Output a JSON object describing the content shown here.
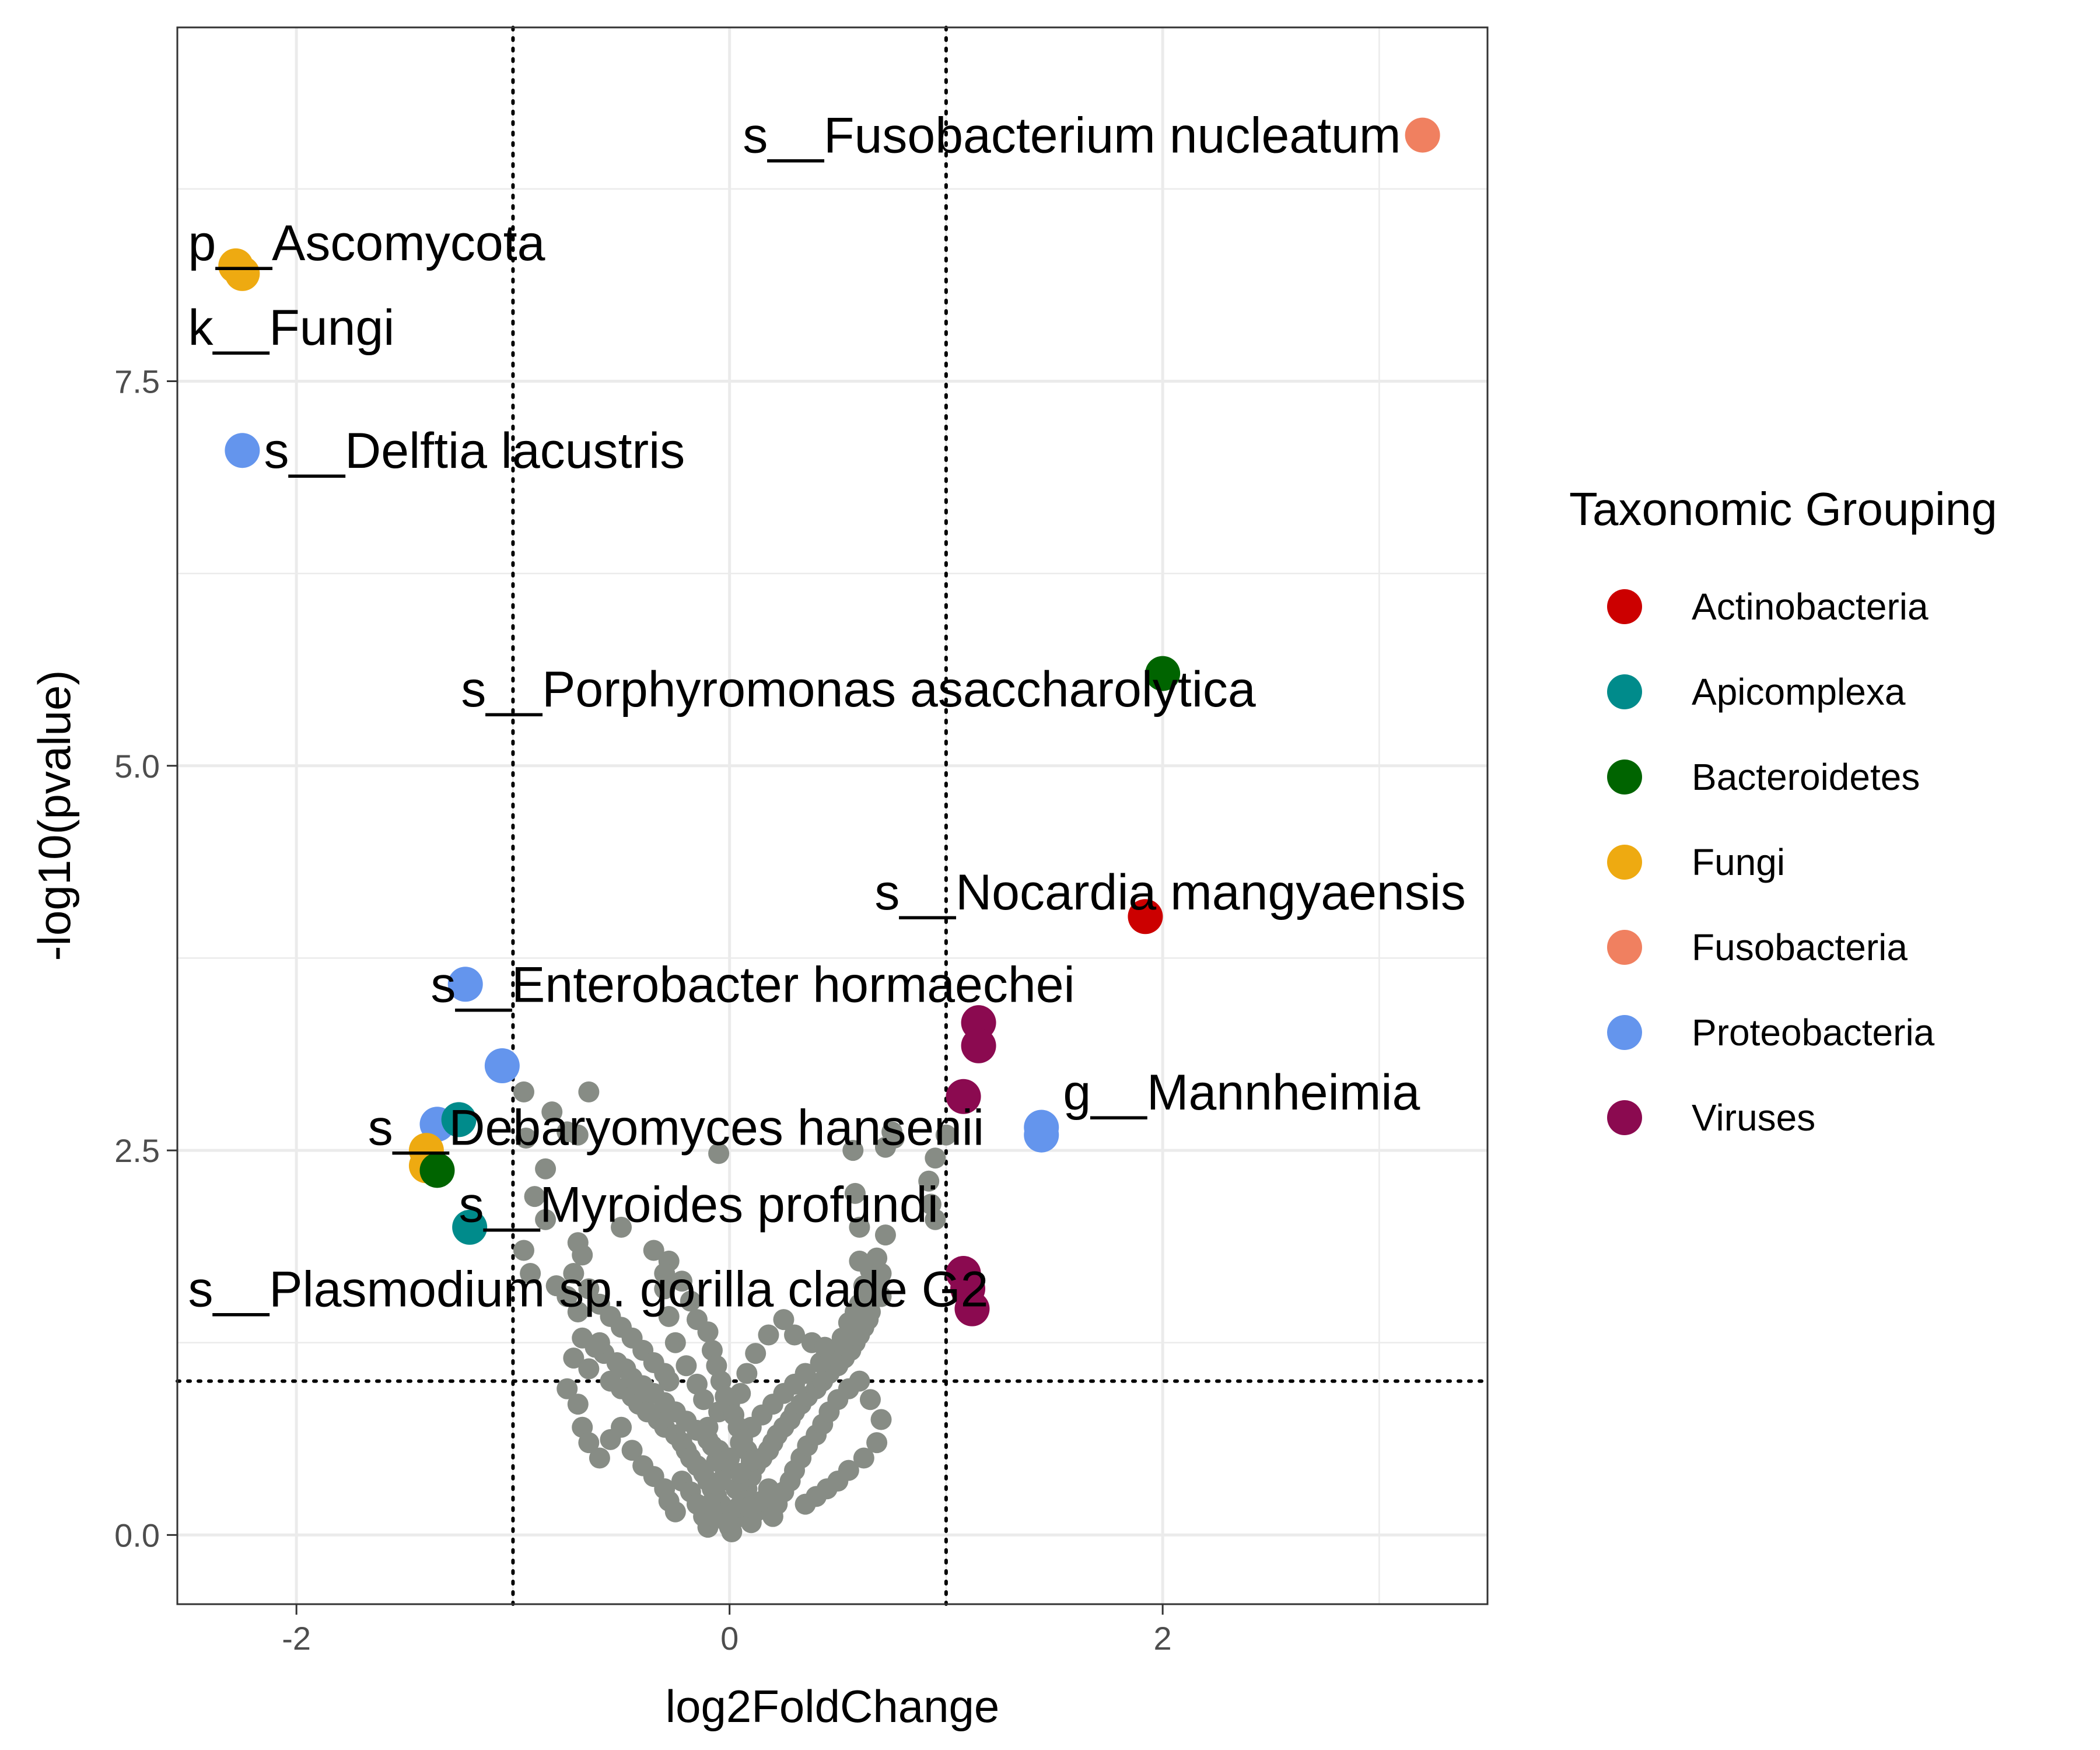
{
  "chart_data": {
    "type": "scatter",
    "title": "",
    "xlabel": "log2FoldChange",
    "ylabel": "-log10(pvalue)",
    "xlim": [
      -2.55,
      3.5
    ],
    "ylim": [
      -0.45,
      9.8
    ],
    "x_ticks": [
      -2,
      0,
      2
    ],
    "x_tick_labels": [
      "-2",
      "0",
      "2"
    ],
    "y_ticks": [
      0,
      2.5,
      5,
      7.5
    ],
    "y_tick_labels": [
      "0.0",
      "2.5",
      "5.0",
      "7.5"
    ],
    "grid": true,
    "thresholds": {
      "vertical": [
        -1,
        1
      ],
      "horizontal": [
        1
      ]
    },
    "legend": {
      "title": "Taxonomic Grouping",
      "placement": "right",
      "entries": [
        {
          "name": "Actinobacteria",
          "color": "#cc0000"
        },
        {
          "name": "Apicomplexa",
          "color": "#008b8b"
        },
        {
          "name": "Bacteroidetes",
          "color": "#006400"
        },
        {
          "name": "Fungi",
          "color": "#eeaa11"
        },
        {
          "name": "Fusobacteria",
          "color": "#f08060"
        },
        {
          "name": "Proteobacteria",
          "color": "#6495ed"
        },
        {
          "name": "Viruses",
          "color": "#8b0a50"
        }
      ]
    },
    "background_color": "#878c85",
    "highlighted": [
      {
        "group": "Fusobacteria",
        "x": 3.2,
        "y": 9.1
      },
      {
        "group": "Fungi",
        "x": -2.25,
        "y": 8.2
      },
      {
        "group": "Fungi",
        "x": -2.28,
        "y": 8.25
      },
      {
        "group": "Proteobacteria",
        "x": -2.25,
        "y": 7.05
      },
      {
        "group": "Bacteroidetes",
        "x": 2.0,
        "y": 5.6
      },
      {
        "group": "Actinobacteria",
        "x": 1.92,
        "y": 4.02
      },
      {
        "group": "Proteobacteria",
        "x": -1.22,
        "y": 3.58
      },
      {
        "group": "Viruses",
        "x": 1.15,
        "y": 3.33
      },
      {
        "group": "Viruses",
        "x": 1.15,
        "y": 3.18
      },
      {
        "group": "Proteobacteria",
        "x": -1.05,
        "y": 3.05
      },
      {
        "group": "Viruses",
        "x": 1.08,
        "y": 2.85
      },
      {
        "group": "Proteobacteria",
        "x": 1.44,
        "y": 2.65
      },
      {
        "group": "Proteobacteria",
        "x": 1.44,
        "y": 2.6
      },
      {
        "group": "Proteobacteria",
        "x": -1.35,
        "y": 2.67
      },
      {
        "group": "Apicomplexa",
        "x": -1.25,
        "y": 2.7
      },
      {
        "group": "Fungi",
        "x": -1.4,
        "y": 2.5
      },
      {
        "group": "Fungi",
        "x": -1.4,
        "y": 2.4
      },
      {
        "group": "Bacteroidetes",
        "x": -1.35,
        "y": 2.37
      },
      {
        "group": "Apicomplexa",
        "x": -1.2,
        "y": 2.0
      },
      {
        "group": "Viruses",
        "x": 1.08,
        "y": 1.7
      },
      {
        "group": "Viruses",
        "x": 1.1,
        "y": 1.6
      },
      {
        "group": "Viruses",
        "x": 1.12,
        "y": 1.47
      }
    ],
    "background_points": [
      [
        -0.95,
        2.88
      ],
      [
        -0.65,
        2.88
      ],
      [
        -0.82,
        2.75
      ],
      [
        -0.75,
        2.62
      ],
      [
        -0.94,
        2.58
      ],
      [
        -0.7,
        2.6
      ],
      [
        -0.05,
        2.48
      ],
      [
        0.57,
        2.5
      ],
      [
        0.72,
        2.52
      ],
      [
        0.76,
        2.58
      ],
      [
        0.75,
        2.62
      ],
      [
        1.0,
        2.6
      ],
      [
        -0.85,
        2.38
      ],
      [
        -0.9,
        2.2
      ],
      [
        -0.85,
        2.05
      ],
      [
        -0.5,
        2.0
      ],
      [
        -0.95,
        1.85
      ],
      [
        -0.92,
        1.7
      ],
      [
        -0.8,
        1.62
      ],
      [
        -0.7,
        1.9
      ],
      [
        -0.68,
        1.82
      ],
      [
        -0.72,
        1.7
      ],
      [
        -0.75,
        1.55
      ],
      [
        -0.7,
        1.45
      ],
      [
        -0.65,
        1.6
      ],
      [
        -0.6,
        1.5
      ],
      [
        -0.55,
        1.42
      ],
      [
        -0.5,
        1.35
      ],
      [
        -0.45,
        1.28
      ],
      [
        -0.4,
        1.2
      ],
      [
        -0.35,
        1.12
      ],
      [
        -0.3,
        1.05
      ],
      [
        -0.28,
        1.0
      ],
      [
        -0.72,
        1.15
      ],
      [
        -0.65,
        1.08
      ],
      [
        -0.6,
        1.25
      ],
      [
        -0.55,
        1.0
      ],
      [
        -0.5,
        0.95
      ],
      [
        -0.45,
        0.9
      ],
      [
        -0.42,
        0.85
      ],
      [
        -0.38,
        0.8
      ],
      [
        -0.33,
        0.75
      ],
      [
        -0.3,
        0.7
      ],
      [
        -0.25,
        0.65
      ],
      [
        -0.22,
        0.6
      ],
      [
        -0.2,
        0.55
      ],
      [
        -0.18,
        0.5
      ],
      [
        -0.15,
        0.45
      ],
      [
        -0.12,
        0.4
      ],
      [
        -0.1,
        0.35
      ],
      [
        -0.08,
        0.3
      ],
      [
        -0.06,
        0.25
      ],
      [
        -0.04,
        0.2
      ],
      [
        -0.02,
        0.15
      ],
      [
        0.0,
        0.05
      ],
      [
        0.02,
        0.1
      ],
      [
        0.04,
        0.18
      ],
      [
        0.06,
        0.25
      ],
      [
        0.08,
        0.3
      ],
      [
        0.1,
        0.38
      ],
      [
        0.12,
        0.45
      ],
      [
        0.15,
        0.5
      ],
      [
        0.18,
        0.55
      ],
      [
        0.2,
        0.6
      ],
      [
        0.22,
        0.65
      ],
      [
        0.25,
        0.7
      ],
      [
        0.28,
        0.75
      ],
      [
        0.3,
        0.8
      ],
      [
        0.33,
        0.85
      ],
      [
        0.36,
        0.9
      ],
      [
        0.4,
        0.95
      ],
      [
        0.43,
        1.0
      ],
      [
        0.46,
        1.05
      ],
      [
        0.5,
        1.1
      ],
      [
        0.53,
        1.15
      ],
      [
        0.56,
        1.2
      ],
      [
        0.58,
        1.25
      ],
      [
        0.6,
        1.3
      ],
      [
        0.62,
        1.35
      ],
      [
        0.64,
        1.4
      ],
      [
        0.6,
        1.5
      ],
      [
        0.65,
        1.45
      ],
      [
        0.7,
        1.55
      ],
      [
        0.68,
        1.62
      ],
      [
        0.66,
        1.55
      ],
      [
        0.62,
        1.42
      ],
      [
        0.57,
        1.3
      ],
      [
        0.52,
        1.2
      ],
      [
        0.47,
        1.18
      ],
      [
        0.42,
        1.12
      ],
      [
        0.35,
        1.05
      ],
      [
        0.3,
        0.98
      ],
      [
        0.25,
        0.92
      ],
      [
        0.2,
        0.85
      ],
      [
        0.15,
        0.78
      ],
      [
        0.1,
        0.7
      ],
      [
        0.05,
        0.6
      ],
      [
        0.0,
        0.5
      ],
      [
        -0.05,
        0.55
      ],
      [
        -0.1,
        0.62
      ],
      [
        -0.15,
        0.68
      ],
      [
        -0.2,
        0.74
      ],
      [
        -0.25,
        0.8
      ],
      [
        -0.3,
        0.86
      ],
      [
        -0.35,
        0.92
      ],
      [
        -0.4,
        0.97
      ],
      [
        -0.45,
        1.02
      ],
      [
        -0.48,
        1.08
      ],
      [
        -0.52,
        1.12
      ],
      [
        -0.58,
        1.18
      ],
      [
        -0.62,
        1.22
      ],
      [
        -0.68,
        1.28
      ],
      [
        -0.75,
        0.95
      ],
      [
        -0.7,
        0.85
      ],
      [
        -0.68,
        0.7
      ],
      [
        -0.65,
        0.6
      ],
      [
        -0.6,
        0.5
      ],
      [
        -0.55,
        0.62
      ],
      [
        -0.5,
        0.7
      ],
      [
        -0.45,
        0.55
      ],
      [
        -0.4,
        0.45
      ],
      [
        -0.35,
        0.38
      ],
      [
        -0.3,
        0.3
      ],
      [
        -0.28,
        0.22
      ],
      [
        -0.25,
        0.15
      ],
      [
        -0.22,
        0.35
      ],
      [
        -0.18,
        0.28
      ],
      [
        -0.15,
        0.2
      ],
      [
        -0.12,
        0.12
      ],
      [
        -0.1,
        0.05
      ],
      [
        0.1,
        0.08
      ],
      [
        0.12,
        0.15
      ],
      [
        0.15,
        0.22
      ],
      [
        0.18,
        0.3
      ],
      [
        0.2,
        0.12
      ],
      [
        0.22,
        0.2
      ],
      [
        0.25,
        0.28
      ],
      [
        0.28,
        0.35
      ],
      [
        0.3,
        0.42
      ],
      [
        0.33,
        0.5
      ],
      [
        0.36,
        0.58
      ],
      [
        0.4,
        0.65
      ],
      [
        0.43,
        0.72
      ],
      [
        0.46,
        0.8
      ],
      [
        0.5,
        0.88
      ],
      [
        0.55,
        0.95
      ],
      [
        0.6,
        1.0
      ],
      [
        0.65,
        0.88
      ],
      [
        0.7,
        0.75
      ],
      [
        0.68,
        0.6
      ],
      [
        0.62,
        0.5
      ],
      [
        0.55,
        0.42
      ],
      [
        0.5,
        0.35
      ],
      [
        0.45,
        0.3
      ],
      [
        0.4,
        0.25
      ],
      [
        0.35,
        0.2
      ],
      [
        -0.3,
        1.6
      ],
      [
        -0.28,
        1.42
      ],
      [
        -0.25,
        1.25
      ],
      [
        -0.2,
        1.1
      ],
      [
        -0.15,
        0.98
      ],
      [
        -0.12,
        0.88
      ],
      [
        -0.05,
        0.8
      ],
      [
        0.05,
        0.92
      ],
      [
        0.08,
        1.05
      ],
      [
        0.12,
        1.18
      ],
      [
        0.18,
        1.3
      ],
      [
        0.25,
        1.4
      ],
      [
        0.3,
        1.3
      ],
      [
        0.38,
        1.25
      ],
      [
        0.44,
        1.22
      ],
      [
        0.52,
        1.28
      ],
      [
        0.55,
        1.38
      ],
      [
        0.58,
        1.45
      ],
      [
        0.62,
        1.62
      ],
      [
        0.65,
        1.72
      ],
      [
        0.6,
        1.78
      ],
      [
        0.68,
        1.8
      ],
      [
        0.7,
        1.7
      ],
      [
        0.72,
        1.95
      ],
      [
        0.95,
        2.05
      ],
      [
        0.93,
        2.15
      ],
      [
        0.92,
        2.3
      ],
      [
        0.95,
        2.45
      ],
      [
        0.58,
        2.22
      ],
      [
        0.6,
        2.0
      ],
      [
        -0.35,
        1.85
      ],
      [
        -0.28,
        1.78
      ],
      [
        -0.3,
        1.7
      ],
      [
        -0.22,
        1.65
      ],
      [
        -0.18,
        1.52
      ],
      [
        -0.15,
        1.4
      ],
      [
        -0.1,
        1.32
      ],
      [
        -0.08,
        1.2
      ],
      [
        -0.06,
        1.1
      ],
      [
        -0.04,
        1.0
      ],
      [
        -0.02,
        0.9
      ],
      [
        0.0,
        0.85
      ],
      [
        0.02,
        0.78
      ],
      [
        0.04,
        0.7
      ],
      [
        0.06,
        0.62
      ],
      [
        0.08,
        0.55
      ],
      [
        0.1,
        0.48
      ],
      [
        -0.02,
        0.42
      ],
      [
        -0.04,
        0.35
      ],
      [
        -0.06,
        0.48
      ],
      [
        -0.08,
        0.58
      ],
      [
        -0.1,
        0.7
      ],
      [
        0.03,
        0.3
      ],
      [
        0.05,
        0.4
      ],
      [
        0.07,
        0.22
      ],
      [
        0.09,
        0.18
      ],
      [
        -0.07,
        0.12
      ],
      [
        -0.09,
        0.2
      ],
      [
        0.01,
        0.02
      ],
      [
        -0.01,
        0.08
      ]
    ],
    "labels": [
      {
        "text": "s__Fusobacterium nucleatum",
        "x": 3.1,
        "y": 9.1,
        "anchor": "end"
      },
      {
        "text": "p__Ascomycota",
        "x": -2.5,
        "y": 8.4,
        "anchor": "start"
      },
      {
        "text": "k__Fungi",
        "x": -2.5,
        "y": 7.85,
        "anchor": "start"
      },
      {
        "text": "s__Delftia lacustris",
        "x": -2.15,
        "y": 7.05,
        "anchor": "start"
      },
      {
        "text": "s__Porphyromonas asaccharolytica",
        "x": 2.43,
        "y": 5.5,
        "anchor": "end"
      },
      {
        "text": "s__Nocardia mangyaensis",
        "x": 3.4,
        "y": 4.18,
        "anchor": "end"
      },
      {
        "text": "s__Enterobacter hormaechei",
        "x": -1.38,
        "y": 3.58,
        "anchor": "start"
      },
      {
        "text": "g__Mannheimia",
        "x": 1.54,
        "y": 2.88,
        "anchor": "start"
      },
      {
        "text": "s__Debaryomyces hansenii",
        "x": -1.67,
        "y": 2.65,
        "anchor": "start"
      },
      {
        "text": "s__Myroides profundi",
        "x": -1.25,
        "y": 2.15,
        "anchor": "start"
      },
      {
        "text": "s__Plasmodium sp. gorilla clade G2",
        "x": -2.5,
        "y": 1.6,
        "anchor": "start"
      }
    ]
  }
}
